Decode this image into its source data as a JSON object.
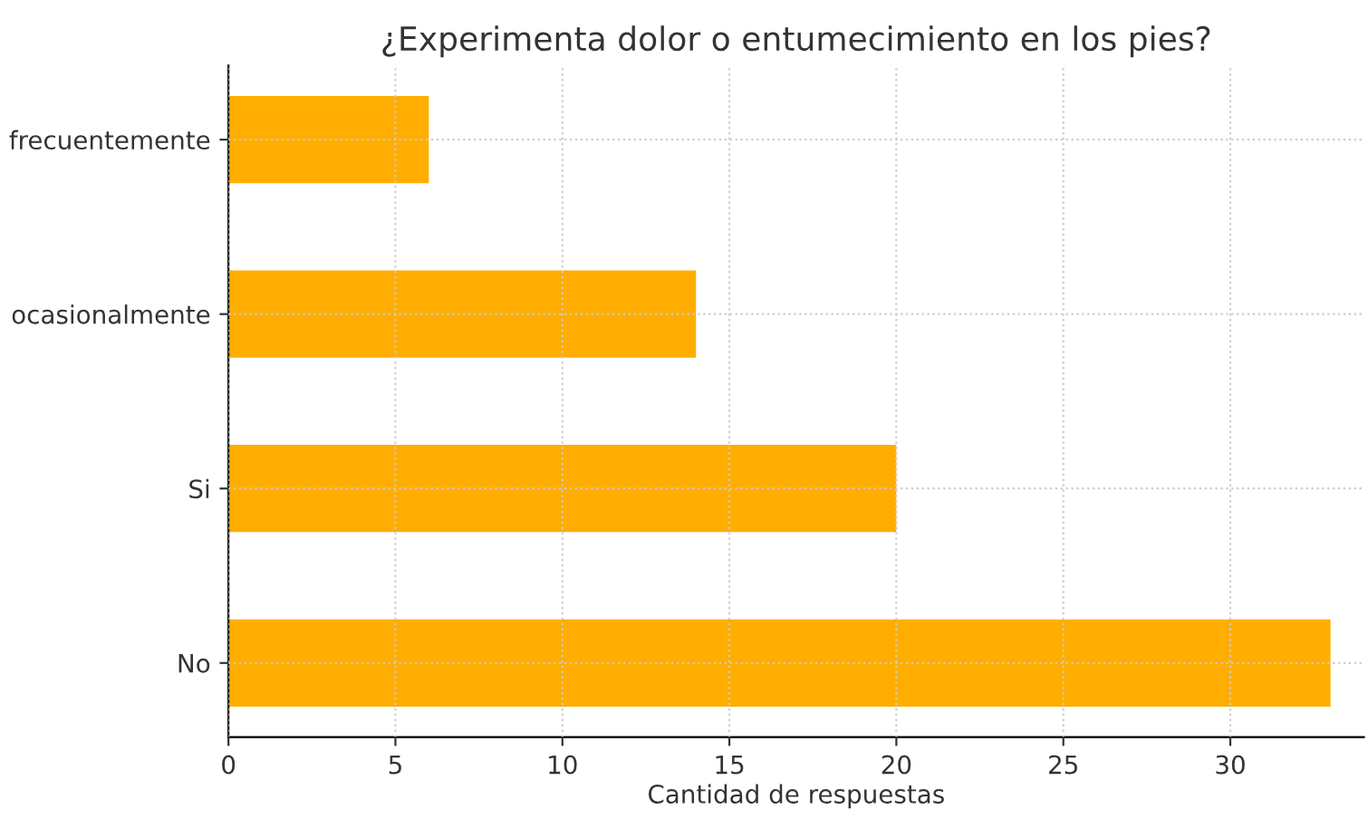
{
  "chart_data": {
    "type": "bar",
    "orientation": "horizontal",
    "title": "¿Experimenta dolor o entumecimiento en los pies?",
    "xlabel": "Cantidad de respuestas",
    "categories": [
      "frecuentemente",
      "ocasionalmente",
      "Si",
      "No"
    ],
    "values": [
      6,
      14,
      20,
      33
    ],
    "color": "#ffad00",
    "xlim": [
      0,
      34
    ],
    "xticks": [
      0,
      5,
      10,
      15,
      20,
      25,
      30
    ],
    "grid": true
  }
}
